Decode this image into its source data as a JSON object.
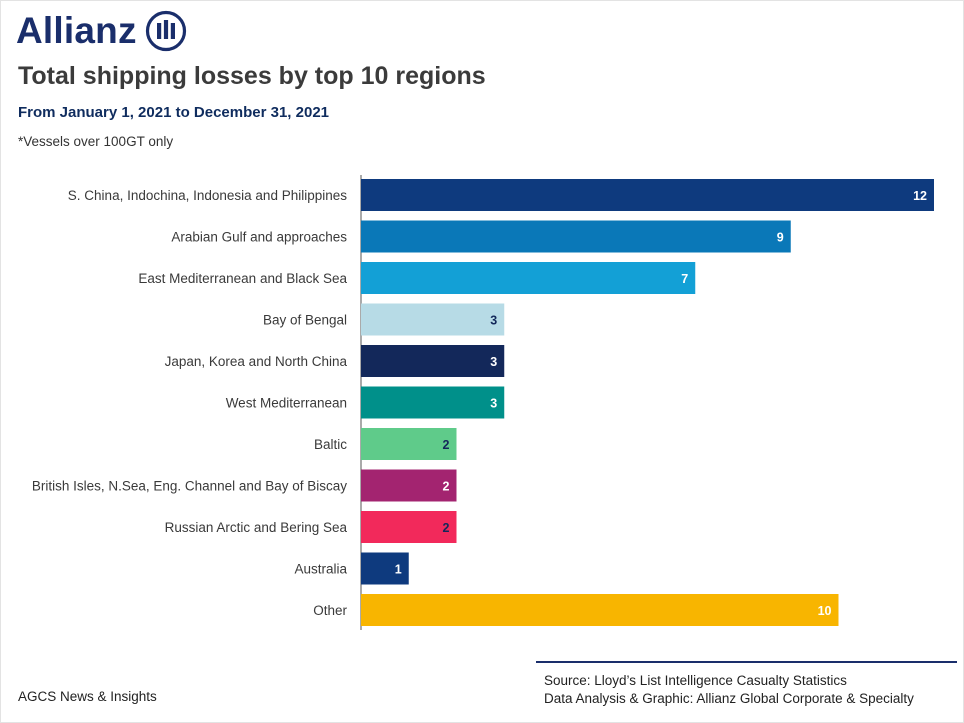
{
  "brand": {
    "name": "Allianz",
    "color": "#1a2e6b",
    "icon": "allianz-eagle-icon"
  },
  "header": {
    "title": "Total shipping losses by top 10 regions",
    "subtitle": "From January 1, 2021 to December 31, 2021",
    "note": "*Vessels over 100GT only"
  },
  "chart_data": {
    "type": "bar",
    "orientation": "horizontal",
    "categories": [
      "S. China, Indochina, Indonesia and Philippines",
      "Arabian Gulf and approaches",
      "East Mediterranean and Black Sea",
      "Bay of Bengal",
      "Japan, Korea and North China",
      "West Mediterranean",
      "Baltic",
      "British Isles, N.Sea, Eng. Channel and Bay of Biscay",
      "Russian Arctic and Bering Sea",
      "Australia",
      "Other"
    ],
    "values": [
      12,
      9,
      7,
      3,
      3,
      3,
      2,
      2,
      2,
      1,
      10
    ],
    "colors": [
      "#0e3a7e",
      "#0a78b8",
      "#13a0d6",
      "#b7dbe6",
      "#13285a",
      "#00908a",
      "#5fcb8a",
      "#a32470",
      "#f2295b",
      "#0e3a7e",
      "#f8b500"
    ],
    "label_colors": [
      "#ffffff",
      "#ffffff",
      "#ffffff",
      "#13285a",
      "#ffffff",
      "#ffffff",
      "#13285a",
      "#ffffff",
      "#13285a",
      "#ffffff",
      "#ffffff"
    ],
    "xlim": [
      0,
      12
    ],
    "grid": false,
    "legend": "none"
  },
  "source": {
    "line1": "Source: Lloyd’s List Intelligence Casualty Statistics",
    "line2": "Data Analysis & Graphic: Allianz Global Corporate & Specialty"
  },
  "footer": {
    "text": "AGCS News & Insights"
  }
}
